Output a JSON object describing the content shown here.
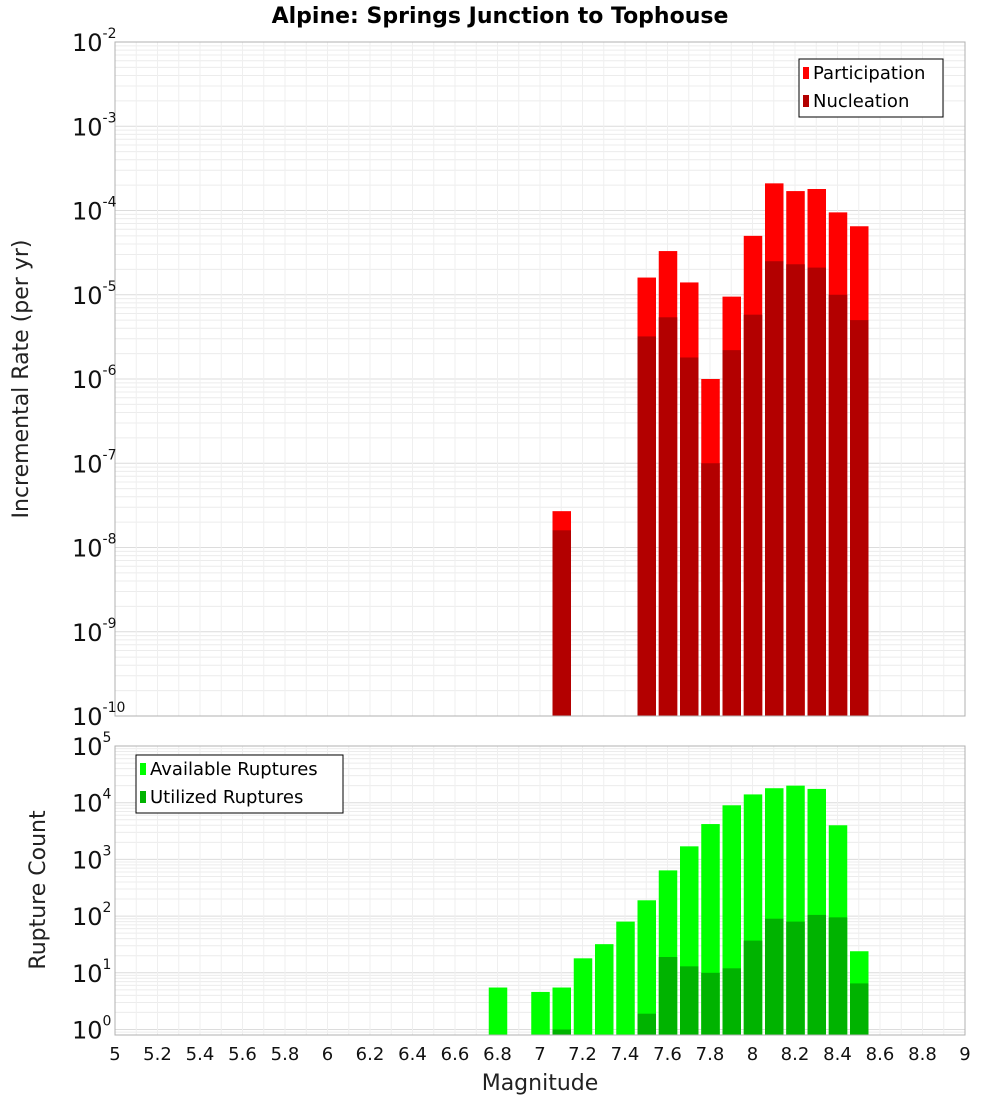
{
  "title": "Alpine: Springs Junction to Tophouse",
  "chart_data": [
    {
      "type": "bar",
      "yscale": "log",
      "ylabel": "Incremental Rate (per yr)",
      "ylim": [
        1e-10,
        0.01
      ],
      "xlim": [
        5,
        9
      ],
      "grid": true,
      "legend_position": "top-right",
      "x": [
        7.1,
        7.5,
        7.6,
        7.7,
        7.8,
        7.9,
        8.0,
        8.1,
        8.2,
        8.3,
        8.4,
        8.5
      ],
      "series": [
        {
          "name": "Participation",
          "color": "#ff0000",
          "values": [
            2.7e-08,
            1.6e-05,
            3.3e-05,
            1.4e-05,
            1e-06,
            9.5e-06,
            5e-05,
            0.00021,
            0.00017,
            0.00018,
            9.5e-05,
            6.5e-05
          ]
        },
        {
          "name": "Nucleation",
          "color": "#b30000",
          "values": [
            1.6e-08,
            3.2e-06,
            5.4e-06,
            1.8e-06,
            1e-07,
            2.2e-06,
            5.8e-06,
            2.5e-05,
            2.3e-05,
            2.1e-05,
            1e-05,
            5e-06
          ]
        }
      ]
    },
    {
      "type": "bar",
      "yscale": "log",
      "xlabel": "Magnitude",
      "ylabel": "Rupture Count",
      "ylim": [
        0.8,
        100000.0
      ],
      "xlim": [
        5,
        9
      ],
      "grid": true,
      "legend_position": "top-left",
      "x_ticks": [
        "5",
        "5.2",
        "5.4",
        "5.6",
        "5.8",
        "6",
        "6.2",
        "6.4",
        "6.6",
        "6.8",
        "7",
        "7.2",
        "7.4",
        "7.6",
        "7.8",
        "8",
        "8.2",
        "8.4",
        "8.6",
        "8.8",
        "9"
      ],
      "x": [
        6.8,
        7.0,
        7.1,
        7.2,
        7.3,
        7.4,
        7.5,
        7.6,
        7.7,
        7.8,
        7.9,
        8.0,
        8.1,
        8.2,
        8.3,
        8.4,
        8.5
      ],
      "series": [
        {
          "name": "Available Ruptures",
          "color": "#00ff00",
          "values": [
            5.5,
            4.6,
            5.5,
            18,
            32,
            80,
            190,
            640,
            1700,
            4200,
            9000,
            14000,
            18000,
            20000,
            17500,
            4000,
            24
          ]
        },
        {
          "name": "Utilized Ruptures",
          "color": "#00b300",
          "values": [
            null,
            null,
            1.0,
            null,
            null,
            null,
            1.9,
            19,
            13,
            10,
            12,
            37,
            90,
            80,
            105,
            95,
            6.5
          ]
        }
      ]
    }
  ]
}
